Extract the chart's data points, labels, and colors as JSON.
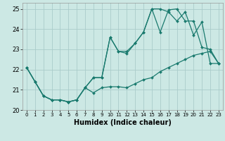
{
  "title": "",
  "xlabel": "Humidex (Indice chaleur)",
  "bg_color": "#cce8e4",
  "grid_color": "#aaccca",
  "line_color": "#1a7a6e",
  "xlim": [
    -0.5,
    23.5
  ],
  "ylim": [
    20,
    25.3
  ],
  "yticks": [
    20,
    21,
    22,
    23,
    24,
    25
  ],
  "xticks": [
    0,
    1,
    2,
    3,
    4,
    5,
    6,
    7,
    8,
    9,
    10,
    11,
    12,
    13,
    14,
    15,
    16,
    17,
    18,
    19,
    20,
    21,
    22,
    23
  ],
  "series1_x": [
    0,
    1,
    2,
    3,
    4,
    5,
    6,
    7,
    8,
    9,
    10,
    11,
    12,
    13,
    14,
    15,
    16,
    17,
    18,
    19,
    20,
    21,
    22,
    23
  ],
  "series1_y": [
    22.1,
    21.4,
    20.7,
    20.5,
    20.5,
    20.4,
    20.5,
    21.1,
    20.85,
    21.1,
    21.15,
    21.15,
    21.1,
    21.3,
    21.5,
    21.6,
    21.9,
    22.1,
    22.3,
    22.5,
    22.7,
    22.8,
    22.9,
    22.3
  ],
  "series2_x": [
    0,
    1,
    2,
    3,
    4,
    5,
    6,
    7,
    8,
    9,
    10,
    11,
    12,
    13,
    14,
    15,
    16,
    17,
    18,
    19,
    20,
    21,
    22,
    23
  ],
  "series2_y": [
    22.1,
    21.4,
    20.7,
    20.5,
    20.5,
    20.4,
    20.5,
    21.1,
    21.6,
    21.6,
    23.6,
    22.9,
    22.8,
    23.3,
    23.85,
    25.0,
    23.85,
    24.95,
    25.0,
    24.4,
    24.4,
    23.1,
    23.0,
    22.3
  ],
  "series3_x": [
    0,
    1,
    2,
    3,
    4,
    5,
    6,
    7,
    8,
    9,
    10,
    11,
    12,
    13,
    14,
    15,
    16,
    17,
    18,
    19,
    20,
    21,
    22,
    23
  ],
  "series3_y": [
    22.1,
    21.4,
    20.7,
    20.5,
    20.5,
    20.4,
    20.5,
    21.1,
    21.6,
    21.6,
    23.6,
    22.9,
    22.9,
    23.3,
    23.85,
    25.0,
    25.0,
    24.85,
    24.4,
    24.85,
    23.7,
    24.35,
    22.3,
    22.3
  ]
}
